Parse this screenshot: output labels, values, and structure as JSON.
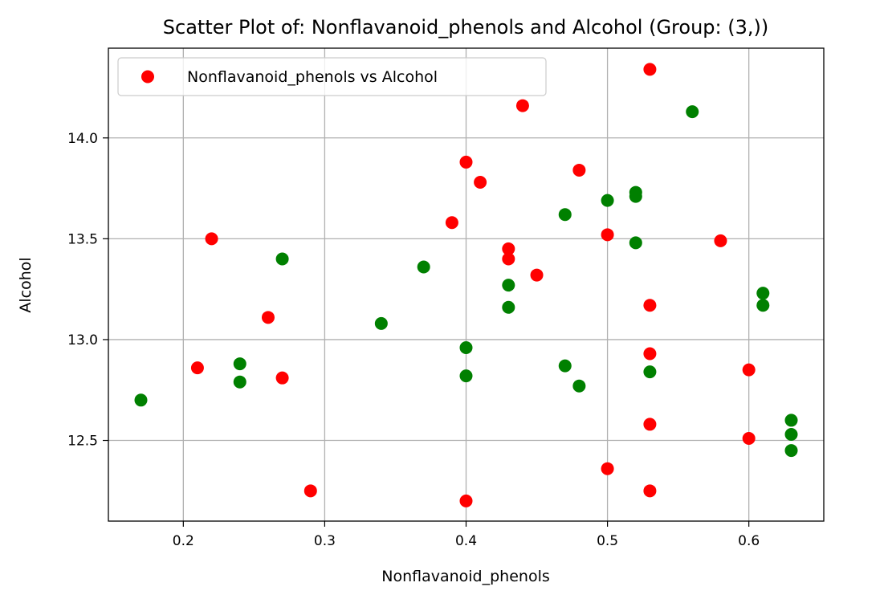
{
  "chart_data": {
    "type": "scatter",
    "title": "Scatter Plot of: Nonflavanoid_phenols and Alcohol (Group: (3,))",
    "xlabel": "Nonflavanoid_phenols",
    "ylabel": "Alcohol",
    "xlim": [
      0.147,
      0.653
    ],
    "ylim": [
      12.1,
      14.445
    ],
    "x_ticks": [
      0.2,
      0.3,
      0.4,
      0.5,
      0.6
    ],
    "x_tick_labels": [
      "0.2",
      "0.3",
      "0.4",
      "0.5",
      "0.6"
    ],
    "y_ticks": [
      12.5,
      13.0,
      13.5,
      14.0
    ],
    "y_tick_labels": [
      "12.5",
      "13.0",
      "13.5",
      "14.0"
    ],
    "grid": true,
    "legend": {
      "location": "upper-left",
      "entries": [
        "Nonflavanoid_phenols vs Alcohol"
      ]
    },
    "series": [
      {
        "name": "Nonflavanoid_phenols vs Alcohol",
        "color": "#ff0000",
        "points": [
          [
            0.53,
            14.34
          ],
          [
            0.44,
            14.16
          ],
          [
            0.4,
            13.88
          ],
          [
            0.48,
            13.84
          ],
          [
            0.41,
            13.78
          ],
          [
            0.39,
            13.58
          ],
          [
            0.5,
            13.52
          ],
          [
            0.22,
            13.5
          ],
          [
            0.58,
            13.49
          ],
          [
            0.43,
            13.45
          ],
          [
            0.43,
            13.4
          ],
          [
            0.45,
            13.32
          ],
          [
            0.53,
            13.17
          ],
          [
            0.26,
            13.11
          ],
          [
            0.53,
            12.93
          ],
          [
            0.21,
            12.86
          ],
          [
            0.6,
            12.85
          ],
          [
            0.27,
            12.81
          ],
          [
            0.53,
            12.58
          ],
          [
            0.6,
            12.51
          ],
          [
            0.5,
            12.36
          ],
          [
            0.29,
            12.25
          ],
          [
            0.53,
            12.25
          ],
          [
            0.4,
            12.2
          ]
        ]
      },
      {
        "color": "#008000",
        "points": [
          [
            0.56,
            14.13
          ],
          [
            0.52,
            13.73
          ],
          [
            0.52,
            13.71
          ],
          [
            0.5,
            13.69
          ],
          [
            0.47,
            13.62
          ],
          [
            0.52,
            13.48
          ],
          [
            0.27,
            13.4
          ],
          [
            0.37,
            13.36
          ],
          [
            0.43,
            13.27
          ],
          [
            0.61,
            13.23
          ],
          [
            0.61,
            13.17
          ],
          [
            0.43,
            13.16
          ],
          [
            0.34,
            13.08
          ],
          [
            0.4,
            12.96
          ],
          [
            0.24,
            12.88
          ],
          [
            0.47,
            12.87
          ],
          [
            0.53,
            12.84
          ],
          [
            0.4,
            12.82
          ],
          [
            0.24,
            12.79
          ],
          [
            0.48,
            12.77
          ],
          [
            0.17,
            12.7
          ],
          [
            0.63,
            12.6
          ],
          [
            0.63,
            12.53
          ],
          [
            0.63,
            12.45
          ]
        ]
      }
    ]
  }
}
